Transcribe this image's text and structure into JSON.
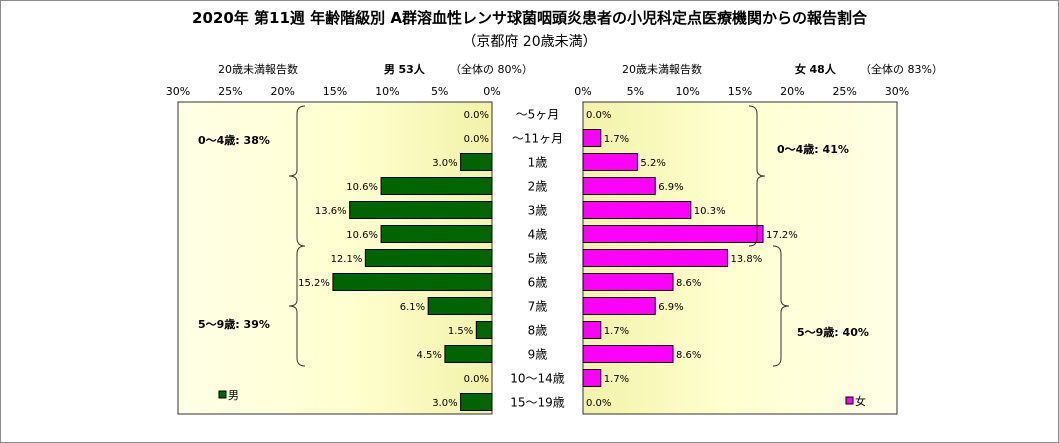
{
  "title": "2020年 第11週 年齢階級別 A群溶血性レンサ球菌咽頭炎患者の小児科定点医療機関からの報告割合",
  "subtitle": "（京都府 20歳未満）",
  "left_header": {
    "label": "20歳未満報告数",
    "sex": "男",
    "count": "53人",
    "share": "（全体の 80%）"
  },
  "right_header": {
    "label": "20歳未満報告数",
    "sex": "女",
    "count": "48人",
    "share": "（全体の 83%）"
  },
  "chart_data": {
    "type": "bar",
    "orientation": "horizontal",
    "layout": "population-pyramid",
    "categories": [
      "～5ヶ月",
      "～11ヶ月",
      "1歳",
      "2歳",
      "3歳",
      "4歳",
      "5歳",
      "6歳",
      "7歳",
      "8歳",
      "9歳",
      "10～14歳",
      "15～19歳"
    ],
    "x_ticks": [
      "30%",
      "25%",
      "20%",
      "15%",
      "10%",
      "5%",
      "0%"
    ],
    "x_ticks_right": [
      "0%",
      "5%",
      "10%",
      "15%",
      "20%",
      "25%",
      "30%"
    ],
    "xlim": [
      0,
      30
    ],
    "series": [
      {
        "name": "男",
        "color": "#006400",
        "values": [
          0.0,
          0.0,
          3.0,
          10.6,
          13.6,
          10.6,
          12.1,
          15.2,
          6.1,
          1.5,
          4.5,
          0.0,
          3.0
        ],
        "labels": [
          "0.0%",
          "0.0%",
          "3.0%",
          "10.6%",
          "13.6%",
          "10.6%",
          "12.1%",
          "15.2%",
          "6.1%",
          "1.5%",
          "4.5%",
          "0.0%",
          "3.0%"
        ]
      },
      {
        "name": "女",
        "color": "#ff00ff",
        "values": [
          0.0,
          1.7,
          5.2,
          6.9,
          10.3,
          17.2,
          13.8,
          8.6,
          6.9,
          1.7,
          8.6,
          1.7,
          0.0
        ],
        "labels": [
          "0.0%",
          "1.7%",
          "5.2%",
          "6.9%",
          "10.3%",
          "17.2%",
          "13.8%",
          "8.6%",
          "6.9%",
          "1.7%",
          "8.6%",
          "1.7%",
          "0.0%"
        ]
      }
    ],
    "annotations": {
      "left_upper": "0～4歳: 38%",
      "left_lower": "5～9歳: 39%",
      "right_upper": "0～4歳: 41%",
      "right_lower": "5～9歳: 40%"
    },
    "legend_position": "bottom"
  }
}
